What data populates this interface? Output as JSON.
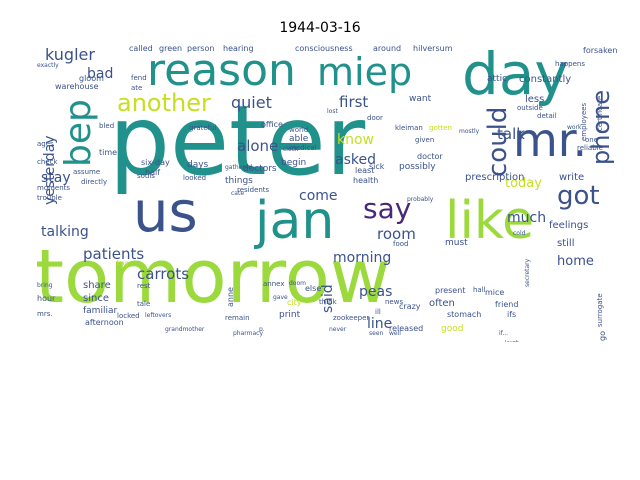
{
  "title": "1944-03-16",
  "palette": {
    "yellow_green": "#9bd93c",
    "teal": "#21918c",
    "navy": "#3b528b",
    "purple": "#482878",
    "green": "#5ec962",
    "light_yellow": "#c5e021",
    "dark": "#2c3e6b"
  },
  "words": {
    "peter": "peter",
    "tomorrow": "tomorrow",
    "reason": "reason",
    "day": "day",
    "miep": "miep",
    "us": "us",
    "jan": "jan",
    "like": "like",
    "mr": "mr.",
    "bep": "bep",
    "phone": "phone",
    "could": "could",
    "got": "got",
    "say": "say",
    "another": "another",
    "patients": "patients",
    "carrots": "carrots",
    "alone": "alone",
    "quiet": "quiet",
    "room": "room",
    "kugler": "kugler",
    "yesterday": "yesterday",
    "bad": "bad",
    "first": "first",
    "know": "know",
    "asked": "asked",
    "talk": "talk",
    "stay": "stay",
    "talking": "talking",
    "much": "much",
    "today": "today",
    "home": "home",
    "come": "come",
    "morning": "morning",
    "said": "said",
    "peas": "peas",
    "line": "line",
    "constantly": "constantly",
    "attic": "attic",
    "less": "less",
    "want": "want",
    "write": "write",
    "feelings": "feelings",
    "still": "still",
    "prescription": "prescription",
    "must": "must",
    "possibly": "possibly",
    "doctors": "doctors",
    "things": "things",
    "days": "days",
    "begin": "begin",
    "share": "share",
    "since": "since",
    "familiar": "familiar",
    "good": "good",
    "often": "often",
    "crazy": "crazy",
    "stomach": "stomach",
    "mice": "mice",
    "friend": "friend",
    "released": "released",
    "present": "present",
    "news": "news",
    "anne": "anne",
    "hour": "hour",
    "afternoon": "afternoon",
    "print": "print",
    "city": "city",
    "else": "else",
    "health": "health",
    "doctor": "doctor",
    "sick": "sick",
    "least": "least",
    "able": "able",
    "office": "office",
    "world": "world",
    "six_day": "six-day",
    "half": "half",
    "time": "time",
    "gloom": "gloom",
    "warehouse": "warehouse",
    "called": "called",
    "green": "green",
    "person": "person",
    "hearing": "hearing",
    "consciousness": "consciousness",
    "around": "around",
    "hilversum": "hilversum",
    "forsaken": "forsaken",
    "happens": "happens",
    "exactly": "exactly",
    "fend": "fend",
    "ate": "ate",
    "bled": "bled",
    "directly": "directly",
    "trouble": "trouble",
    "moments": "moments",
    "assume": "assume",
    "check": "check",
    "ages": "ages",
    "locked": "locked",
    "rest": "rest",
    "tale": "tale",
    "remain": "remain",
    "zookeeper": "zookeeper",
    "medical": "medical",
    "kleiman": "kleiman",
    "gotten": "gotten",
    "outside": "outside",
    "detail": "detail",
    "reliable": "reliable",
    "one": "one",
    "given": "given",
    "door": "door",
    "clock": "clock",
    "grateful": "grateful",
    "souls": "souls",
    "looked": "looked",
    "residents": "residents",
    "mrs": "mrs.",
    "grandmother": "grandmother",
    "leftovers": "leftovers",
    "food": "food",
    "mostly": "mostly",
    "pharmacy": "pharmacy",
    "bag": "bag",
    "gave": "gave",
    "think": "think",
    "never": "never",
    "seen": "seen",
    "well": "well",
    "ifs": "ifs",
    "hall": "hall",
    "lost": "lost",
    "cold": "cold",
    "annex": "annex",
    "doom": "doom",
    "gathered": "gathered",
    "probably": "probably",
    "cate": "cate",
    "certificate": "certificate",
    "employees": "employees",
    "work": "work",
    "bring": "bring",
    "ill": "ill",
    "if": "if...",
    "go": "go",
    "surrogate": "surrogate",
    "secretary": "secretary",
    "laugh": "laugh",
    "p": "p."
  }
}
